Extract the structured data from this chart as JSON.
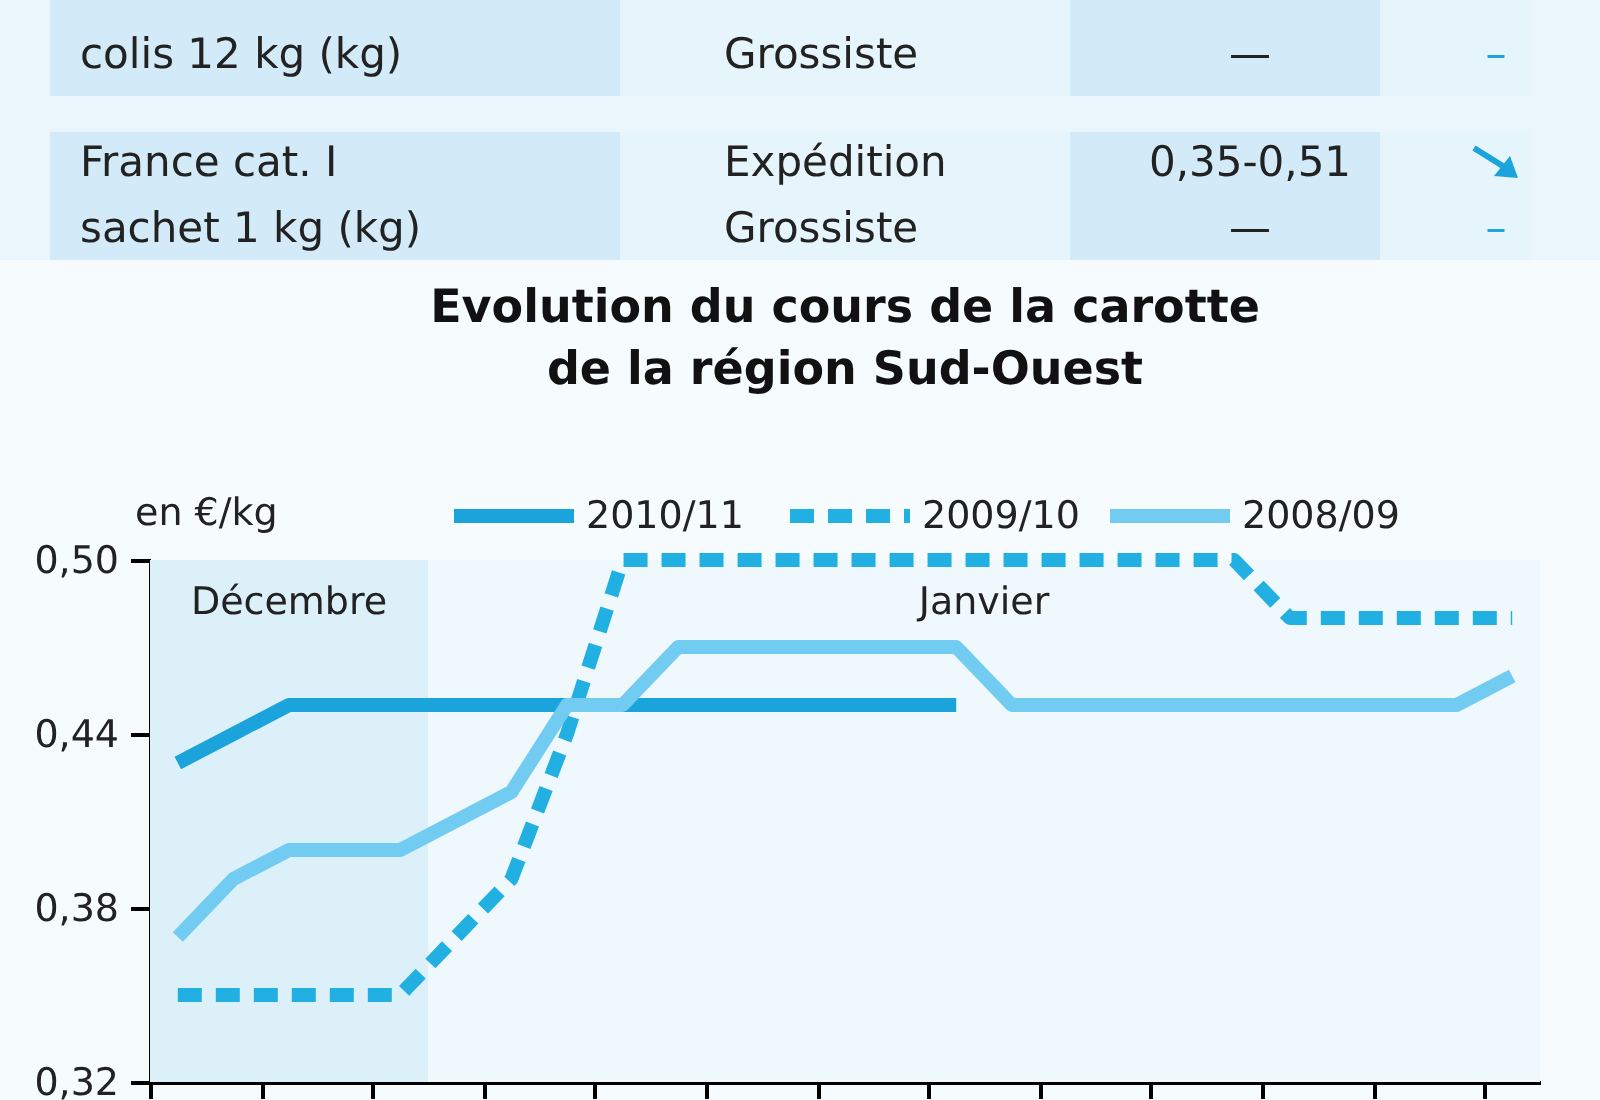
{
  "chart_data": [
    {
      "type": "other",
      "annotations": [
        "colis 12 kg (kg)",
        "Grossiste",
        "—",
        "–",
        "France cat. I",
        "Expédition",
        "0,35-0,51",
        "sachet 1 kg (kg)",
        "Grossiste",
        "—",
        "–"
      ]
    },
    {
      "type": "line",
      "title": "Evolution du cours de la carotte\nde la région Sud-Ouest",
      "ylabel": "en €/kg",
      "categories": [
        null,
        null,
        null,
        null,
        null,
        null,
        null,
        null,
        null,
        null,
        null,
        null,
        null,
        null,
        null,
        null,
        null,
        null,
        null,
        null,
        null,
        null,
        null,
        null,
        null
      ],
      "series": [
        {
          "name": "2010/11",
          "color": "#1ba3dc",
          "line_style": "solid",
          "values": [
            0.43,
            0.44,
            0.45,
            0.45,
            0.45,
            0.45,
            0.45,
            0.45,
            0.45,
            0.45,
            0.45,
            0.45,
            0.45,
            0.45,
            0.45,
            null,
            null,
            null,
            null,
            null,
            null,
            null,
            null,
            null,
            null
          ]
        },
        {
          "name": "2009/10",
          "color": "#22b0e2",
          "line_style": "dashed",
          "values": [
            0.35,
            0.35,
            0.35,
            0.35,
            0.35,
            0.37,
            0.39,
            0.44,
            0.5,
            0.5,
            0.5,
            0.5,
            0.5,
            0.5,
            0.5,
            0.5,
            0.5,
            0.5,
            0.5,
            0.5,
            0.48,
            0.48,
            0.48,
            0.48,
            0.48
          ]
        },
        {
          "name": "2008/09",
          "color": "#72ccf1",
          "line_style": "solid",
          "values": [
            0.37,
            0.39,
            0.4,
            0.4,
            0.4,
            0.41,
            0.42,
            0.45,
            0.45,
            0.47,
            0.47,
            0.47,
            0.47,
            0.47,
            0.47,
            0.45,
            0.45,
            0.45,
            0.45,
            0.45,
            0.45,
            0.45,
            0.45,
            0.45,
            0.46
          ]
        }
      ],
      "ylim": [
        0.32,
        0.5
      ],
      "yticks": [
        {
          "value": 0.32,
          "label": "0,32"
        },
        {
          "value": 0.38,
          "label": "0,38"
        },
        {
          "value": 0.44,
          "label": "0,44"
        },
        {
          "value": 0.5,
          "label": "0,50"
        }
      ],
      "annotations": [
        "Décembre",
        "Janvier"
      ],
      "tick_labels": "y",
      "grid": false,
      "legend": "top",
      "marker": "none"
    }
  ]
}
